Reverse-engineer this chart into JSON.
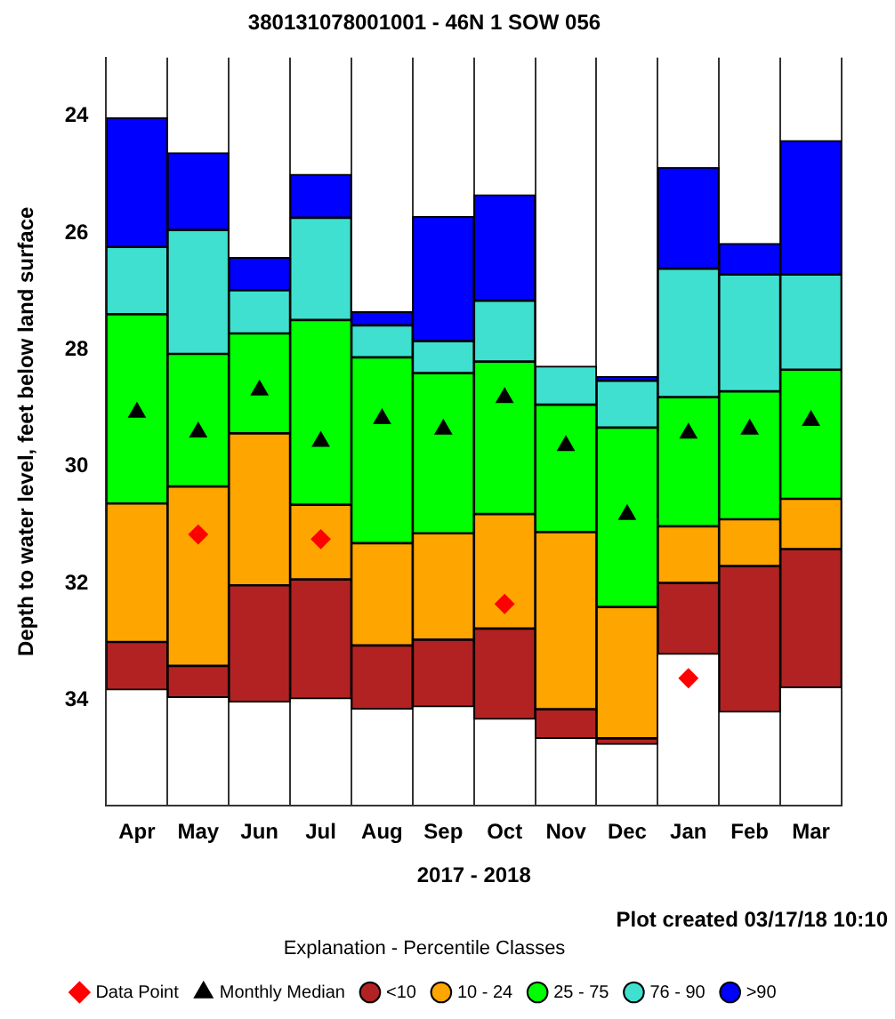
{
  "chart_data": {
    "type": "bar",
    "title": "380131078001001 - 46N 1 SOW 056",
    "xlabel": "2017 - 2018",
    "ylabel": "Depth to water level, feet below land surface",
    "legend_title": "Explanation - Percentile Classes",
    "annotations": [
      "Plot created 03/17/18 10:10"
    ],
    "categories": [
      "Apr",
      "May",
      "Jun",
      "Jul",
      "Aug",
      "Sep",
      "Oct",
      "Nov",
      "Dec",
      "Jan",
      "Feb",
      "Mar"
    ],
    "ylim": [
      35.8,
      23
    ],
    "yticks": [
      24,
      26,
      28,
      30,
      32,
      34
    ],
    "grid": "x",
    "legend": "bottom",
    "series": [
      {
        "name": "Data Point",
        "type": "scatter",
        "marker": "diamond",
        "color": "#ff0000",
        "x": [
          "May",
          "Jul",
          "Oct",
          "Jan"
        ],
        "values": [
          31.16,
          31.24,
          32.35,
          33.62
        ]
      },
      {
        "name": "<10",
        "color": "#b22222",
        "base": [
          33.0,
          33.41,
          32.03,
          31.93,
          33.06,
          32.96,
          32.77,
          34.15,
          34.65,
          31.99,
          31.7,
          31.41
        ],
        "values": [
          0.82,
          0.54,
          2.0,
          2.04,
          1.09,
          1.15,
          1.55,
          0.5,
          0.1,
          1.22,
          2.5,
          2.37
        ]
      },
      {
        "name": "10 - 24",
        "color": "#ffa500",
        "base": [
          30.63,
          30.34,
          29.43,
          30.65,
          31.31,
          31.14,
          30.81,
          31.12,
          32.4,
          31.02,
          30.9,
          30.55
        ],
        "values": [
          2.37,
          3.07,
          2.6,
          1.28,
          1.75,
          1.82,
          1.96,
          3.03,
          2.25,
          0.97,
          0.8,
          0.86
        ]
      },
      {
        "name": "25 - 75",
        "color": "#00ff00",
        "base": [
          27.39,
          28.07,
          27.72,
          27.49,
          28.13,
          28.4,
          28.2,
          28.94,
          29.33,
          28.81,
          28.71,
          28.34
        ],
        "values": [
          3.24,
          2.27,
          1.71,
          3.16,
          3.18,
          2.74,
          2.61,
          2.18,
          3.07,
          2.21,
          2.19,
          2.21
        ]
      },
      {
        "name": "76 - 90",
        "color": "#40e0d0",
        "base": [
          26.24,
          25.95,
          26.98,
          25.74,
          27.58,
          27.85,
          27.16,
          28.28,
          28.53,
          26.61,
          26.71,
          26.71
        ],
        "values": [
          1.15,
          2.12,
          0.74,
          1.75,
          0.55,
          0.55,
          1.04,
          0.66,
          0.8,
          2.2,
          2.0,
          1.63
        ]
      },
      {
        "name": ">90",
        "color": "#0000ff",
        "base": [
          24.03,
          24.63,
          26.42,
          25.0,
          27.35,
          25.72,
          25.35,
          null,
          28.46,
          24.88,
          26.18,
          24.42
        ],
        "values": [
          2.21,
          1.32,
          0.56,
          0.74,
          0.23,
          2.13,
          1.81,
          null,
          0.07,
          1.73,
          0.53,
          2.29
        ]
      },
      {
        "name": "Monthly Median",
        "type": "scatter",
        "marker": "triangle",
        "color": "#000000",
        "x": [
          "Apr",
          "May",
          "Jun",
          "Jul",
          "Aug",
          "Sep",
          "Oct",
          "Nov",
          "Dec",
          "Jan",
          "Feb",
          "Mar"
        ],
        "values": [
          29.07,
          29.41,
          28.69,
          29.57,
          29.18,
          29.36,
          28.82,
          29.64,
          30.82,
          29.43,
          29.36,
          29.21
        ]
      }
    ]
  }
}
